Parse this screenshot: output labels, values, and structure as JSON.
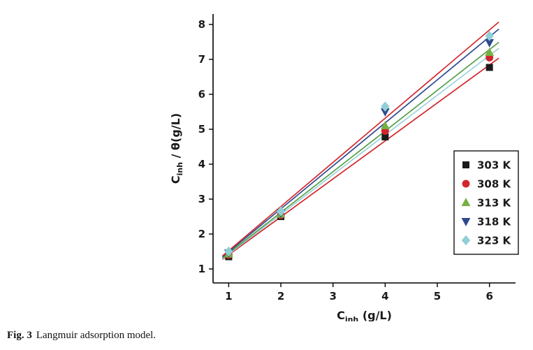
{
  "caption": {
    "label": "Fig. 3",
    "text": "Langmuir adsorption model."
  },
  "chart_data": {
    "type": "scatter",
    "title": "",
    "x": [
      1,
      2,
      4,
      6
    ],
    "series": [
      {
        "name": "303 K",
        "marker": "square",
        "color": "#1a1a1a",
        "fit_color": "#d3262c",
        "values": [
          1.35,
          2.5,
          4.78,
          6.77
        ]
      },
      {
        "name": "308 K",
        "marker": "circle",
        "color": "#d3262c",
        "fit_color": "#9fd3d9",
        "values": [
          1.4,
          2.54,
          4.95,
          7.05
        ]
      },
      {
        "name": "313 K",
        "marker": "triangle-up",
        "color": "#77b043",
        "fit_color": "#55a04a",
        "values": [
          1.43,
          2.57,
          5.1,
          7.2
        ]
      },
      {
        "name": "318 K",
        "marker": "triangle-down",
        "color": "#2e4a8f",
        "fit_color": "#2e4a8f",
        "values": [
          1.46,
          2.6,
          5.5,
          7.48
        ]
      },
      {
        "name": "323 K",
        "marker": "diamond",
        "color": "#8fd0d6",
        "fit_color": "#d3262c",
        "values": [
          1.5,
          2.65,
          5.65,
          7.67
        ]
      }
    ],
    "fit": {
      "type": "linear",
      "x_range": [
        0.88,
        6.18
      ]
    },
    "xlabel_parts": {
      "pre": "C",
      "sub": "inh",
      "post": " (g/L)"
    },
    "ylabel_parts": {
      "pre": "C",
      "sub": "inh",
      "post": " / θ(g/L)"
    },
    "xlim": [
      0.7,
      6.5
    ],
    "ylim": [
      0.6,
      8.3
    ],
    "xticks": [
      1,
      2,
      3,
      4,
      5,
      6
    ],
    "yticks": [
      1,
      2,
      3,
      4,
      5,
      6,
      7,
      8
    ],
    "grid": false,
    "legend_position": "right-middle",
    "axis_color": "#000000",
    "text_color": "#1a1a1a"
  }
}
